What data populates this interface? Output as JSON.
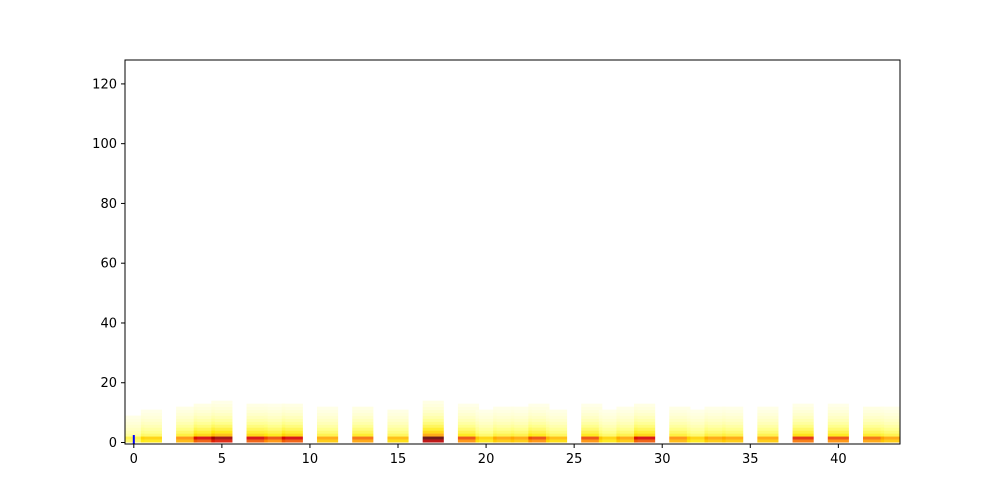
{
  "chart_data": {
    "type": "heatmap",
    "title": "",
    "xlabel": "",
    "ylabel": "",
    "xlim": [
      -0.5,
      43.5
    ],
    "ylim": [
      -0.5,
      128
    ],
    "x_ticks": [
      0,
      5,
      10,
      15,
      20,
      25,
      30,
      35,
      40
    ],
    "x_tick_labels": [
      "0",
      "5",
      "10",
      "15",
      "20",
      "25",
      "30",
      "35",
      "40"
    ],
    "y_ticks": [
      0,
      20,
      40,
      60,
      80,
      100,
      120
    ],
    "y_tick_labels": [
      "0",
      "20",
      "40",
      "60",
      "80",
      "100",
      "120"
    ],
    "colormap": [
      "#ffffff",
      "#ffff80",
      "#ffe600",
      "#ff8c00",
      "#d40000",
      "#600000"
    ],
    "frames": [
      {
        "x": 0,
        "level": 0.3
      },
      {
        "x": 1,
        "level": 0.45
      },
      {
        "x": 3,
        "level": 0.6
      },
      {
        "x": 4,
        "level": 0.8
      },
      {
        "x": 5,
        "level": 0.9
      },
      {
        "x": 7,
        "level": 0.8
      },
      {
        "x": 8,
        "level": 0.7
      },
      {
        "x": 9,
        "level": 0.8
      },
      {
        "x": 11,
        "level": 0.55
      },
      {
        "x": 13,
        "level": 0.65
      },
      {
        "x": 15,
        "level": 0.5
      },
      {
        "x": 17,
        "level": 1.0
      },
      {
        "x": 19,
        "level": 0.7
      },
      {
        "x": 20,
        "level": 0.45
      },
      {
        "x": 21,
        "level": 0.55
      },
      {
        "x": 22,
        "level": 0.55
      },
      {
        "x": 23,
        "level": 0.7
      },
      {
        "x": 24,
        "level": 0.5
      },
      {
        "x": 26,
        "level": 0.7
      },
      {
        "x": 27,
        "level": 0.45
      },
      {
        "x": 28,
        "level": 0.55
      },
      {
        "x": 29,
        "level": 0.8
      },
      {
        "x": 31,
        "level": 0.6
      },
      {
        "x": 32,
        "level": 0.45
      },
      {
        "x": 33,
        "level": 0.55
      },
      {
        "x": 34,
        "level": 0.55
      },
      {
        "x": 36,
        "level": 0.55
      },
      {
        "x": 38,
        "level": 0.75
      },
      {
        "x": 40,
        "level": 0.7
      },
      {
        "x": 42,
        "level": 0.65
      },
      {
        "x": 43,
        "level": 0.55
      }
    ],
    "marker": {
      "x": 0,
      "y_range": [
        0,
        1
      ],
      "color": "#0000ff"
    }
  }
}
